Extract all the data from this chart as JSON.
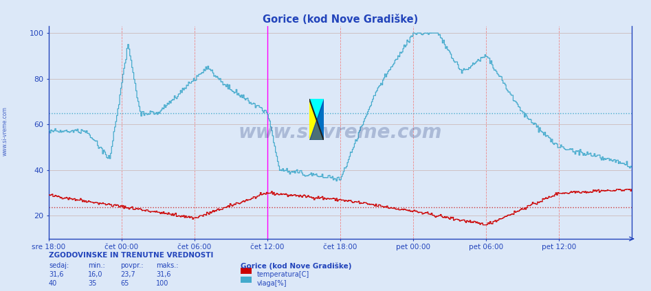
{
  "title": "Gorice (kod Nove Gradiške)",
  "bg_color": "#dce8f8",
  "plot_bg_color": "#dce8f8",
  "temp_color": "#cc0000",
  "vlaga_color": "#44aacc",
  "temp_avg": 23.7,
  "vlaga_avg": 65,
  "temp_min": 16.0,
  "temp_max": 31.6,
  "temp_sedaj": 31.6,
  "vlaga_min": 35,
  "vlaga_max": 100,
  "vlaga_avg_val": 65,
  "vlaga_sedaj": 40,
  "yticks": [
    20,
    40,
    60,
    80,
    100
  ],
  "ymin": 10,
  "ymax": 103,
  "x_tick_labels": [
    "sre 18:00",
    "čet 00:00",
    "čet 06:00",
    "čet 12:00",
    "čet 18:00",
    "pet 00:00",
    "pet 06:00",
    "pet 12:00"
  ],
  "n_points": 577,
  "title_color": "#2244bb",
  "axis_color": "#2244bb",
  "spine_color": "#2244bb",
  "grid_v_color": "#ee8888",
  "grid_h_color": "#ccbbbb",
  "avg_line_temp_color": "#cc3333",
  "avg_line_vlaga_color": "#44aacc",
  "watermark_color": "#1a3377",
  "legend_temp": "temperatura[C]",
  "legend_vlaga": "vlaga[%]",
  "footer_label": "ZGODOVINSKE IN TRENUTNE VREDNOSTI",
  "footer_color": "#2244bb",
  "side_label_color": "#2244bb"
}
